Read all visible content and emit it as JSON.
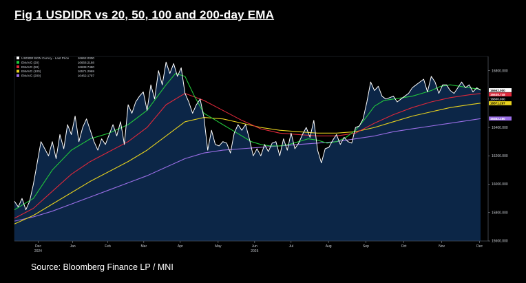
{
  "figure": {
    "title": "Fig  1  USDIDR vs 20, 50, 100 and 200-day EMA",
    "source": "Source: Bloomberg Finance LP / MNI"
  },
  "chart_data": {
    "type": "line",
    "title": "USDIDR vs 20, 50, 100 and 200-day EMA",
    "xlabel": "",
    "ylabel": "",
    "ylim": [
      15600,
      16900
    ],
    "y_ticks": [
      15600,
      15800,
      16000,
      16200,
      16400,
      16600,
      16800
    ],
    "y_tick_labels": [
      "15600.000",
      "15800.000",
      "16000.000",
      "16200.000",
      "16400.000",
      "16600.000",
      "16800.000"
    ],
    "x_ticks": [
      {
        "t": 0.05,
        "label": "Dec",
        "sub": "2024"
      },
      {
        "t": 0.123,
        "label": "Jan",
        "sub": ""
      },
      {
        "t": 0.197,
        "label": "Feb",
        "sub": ""
      },
      {
        "t": 0.273,
        "label": "Mar",
        "sub": ""
      },
      {
        "t": 0.35,
        "label": "Apr",
        "sub": ""
      },
      {
        "t": 0.43,
        "label": "May",
        "sub": ""
      },
      {
        "t": 0.507,
        "label": "Jun",
        "sub": "2025"
      },
      {
        "t": 0.584,
        "label": "Jul",
        "sub": ""
      },
      {
        "t": 0.663,
        "label": "Aug",
        "sub": ""
      },
      {
        "t": 0.742,
        "label": "Sep",
        "sub": ""
      },
      {
        "t": 0.822,
        "label": "Oct",
        "sub": ""
      },
      {
        "t": 0.902,
        "label": "Nov",
        "sub": ""
      },
      {
        "t": 0.982,
        "label": "Dec",
        "sub": ""
      }
    ],
    "legend": [
      {
        "label": "USDIDR BGN Curncy - Last Price",
        "value": "16662.0000",
        "color": "#ffffff"
      },
      {
        "label": "EMAVG (20)",
        "value": "16668.2188",
        "color": "#22c83c"
      },
      {
        "label": "EMAVG (50)",
        "value": "16638.7480",
        "color": "#e0283a"
      },
      {
        "label": "EMAVG (100)",
        "value": "16571.2969",
        "color": "#e8d21e"
      },
      {
        "label": "EMAVG (200)",
        "value": "16462.1797",
        "color": "#9a6ee6"
      }
    ],
    "last_value_tags": [
      {
        "label": "16662.000",
        "value": 16662.0,
        "bg": "#ffffff",
        "fg": "#000000"
      },
      {
        "label": "16638.748",
        "value": 16638.748,
        "bg": "#e0283a",
        "fg": "#ffffff"
      },
      {
        "label": "16600.000",
        "value": 16600.0,
        "bg": "#000000",
        "fg": "#c8ccd2"
      },
      {
        "label": "16571.297",
        "value": 16571.297,
        "bg": "#e8d21e",
        "fg": "#000000"
      },
      {
        "label": "16462.180",
        "value": 16462.18,
        "bg": "#9a6ee6",
        "fg": "#ffffff"
      }
    ],
    "series": [
      {
        "name": "USDIDR BGN Curncy - Last Price",
        "color": "#ffffff",
        "fill": "#0c2647",
        "x": [
          0,
          0.008,
          0.016,
          0.024,
          0.032,
          0.04,
          0.048,
          0.056,
          0.064,
          0.072,
          0.08,
          0.088,
          0.096,
          0.104,
          0.112,
          0.12,
          0.128,
          0.136,
          0.144,
          0.152,
          0.16,
          0.168,
          0.176,
          0.184,
          0.192,
          0.2,
          0.208,
          0.216,
          0.224,
          0.232,
          0.24,
          0.248,
          0.256,
          0.264,
          0.272,
          0.28,
          0.288,
          0.296,
          0.304,
          0.312,
          0.32,
          0.328,
          0.336,
          0.344,
          0.352,
          0.36,
          0.368,
          0.376,
          0.384,
          0.392,
          0.4,
          0.408,
          0.416,
          0.424,
          0.432,
          0.44,
          0.448,
          0.456,
          0.464,
          0.472,
          0.48,
          0.488,
          0.496,
          0.504,
          0.512,
          0.52,
          0.528,
          0.536,
          0.544,
          0.552,
          0.56,
          0.568,
          0.576,
          0.584,
          0.592,
          0.6,
          0.608,
          0.616,
          0.624,
          0.632,
          0.64,
          0.648,
          0.656,
          0.664,
          0.672,
          0.68,
          0.688,
          0.696,
          0.704,
          0.712,
          0.72,
          0.728,
          0.736,
          0.744,
          0.752,
          0.76,
          0.768,
          0.776,
          0.784,
          0.792,
          0.8,
          0.808,
          0.816,
          0.824,
          0.832,
          0.84,
          0.848,
          0.856,
          0.864,
          0.872,
          0.88,
          0.888,
          0.896,
          0.904,
          0.912,
          0.92,
          0.928,
          0.936,
          0.944,
          0.952,
          0.96,
          0.968,
          0.976,
          0.984
        ],
        "values": [
          15880,
          15840,
          15900,
          15820,
          15880,
          16000,
          16150,
          16300,
          16250,
          16200,
          16300,
          16180,
          16350,
          16250,
          16420,
          16350,
          16480,
          16300,
          16400,
          16460,
          16380,
          16300,
          16240,
          16320,
          16280,
          16350,
          16420,
          16340,
          16440,
          16280,
          16560,
          16500,
          16580,
          16620,
          16650,
          16520,
          16700,
          16600,
          16800,
          16700,
          16860,
          16780,
          16850,
          16760,
          16820,
          16640,
          16580,
          16500,
          16560,
          16600,
          16470,
          16240,
          16380,
          16280,
          16270,
          16300,
          16290,
          16220,
          16360,
          16420,
          16380,
          16420,
          16320,
          16200,
          16250,
          16200,
          16280,
          16230,
          16290,
          16300,
          16200,
          16320,
          16240,
          16360,
          16250,
          16290,
          16350,
          16400,
          16330,
          16450,
          16240,
          16150,
          16250,
          16260,
          16310,
          16350,
          16280,
          16330,
          16300,
          16290,
          16400,
          16410,
          16460,
          16580,
          16720,
          16660,
          16690,
          16620,
          16600,
          16610,
          16620,
          16580,
          16600,
          16620,
          16640,
          16680,
          16700,
          16720,
          16740,
          16650,
          16760,
          16720,
          16640,
          16700,
          16700,
          16660,
          16640,
          16680,
          16720,
          16680,
          16700,
          16650,
          16680,
          16662
        ]
      },
      {
        "name": "EMAVG (20)",
        "color": "#22c83c",
        "x": [
          0,
          0.04,
          0.08,
          0.12,
          0.16,
          0.2,
          0.24,
          0.28,
          0.32,
          0.34,
          0.36,
          0.38,
          0.4,
          0.42,
          0.44,
          0.46,
          0.48,
          0.5,
          0.52,
          0.54,
          0.56,
          0.58,
          0.6,
          0.62,
          0.64,
          0.66,
          0.68,
          0.7,
          0.72,
          0.74,
          0.76,
          0.78,
          0.8,
          0.82,
          0.84,
          0.86,
          0.88,
          0.9,
          0.92,
          0.94,
          0.96,
          0.984
        ],
        "values": [
          15820,
          15900,
          16100,
          16240,
          16320,
          16360,
          16420,
          16520,
          16700,
          16780,
          16760,
          16620,
          16500,
          16460,
          16420,
          16380,
          16340,
          16300,
          16280,
          16270,
          16270,
          16280,
          16300,
          16320,
          16310,
          16290,
          16300,
          16330,
          16380,
          16460,
          16550,
          16590,
          16600,
          16610,
          16620,
          16640,
          16660,
          16690,
          16700,
          16690,
          16680,
          16668
        ]
      },
      {
        "name": "EMAVG (50)",
        "color": "#e0283a",
        "x": [
          0,
          0.04,
          0.08,
          0.12,
          0.16,
          0.2,
          0.24,
          0.28,
          0.32,
          0.36,
          0.4,
          0.44,
          0.48,
          0.52,
          0.56,
          0.6,
          0.64,
          0.68,
          0.72,
          0.76,
          0.8,
          0.84,
          0.88,
          0.92,
          0.96,
          0.984
        ],
        "values": [
          15760,
          15830,
          15950,
          16070,
          16160,
          16230,
          16300,
          16400,
          16560,
          16640,
          16590,
          16520,
          16450,
          16390,
          16360,
          16350,
          16340,
          16340,
          16360,
          16430,
          16490,
          16540,
          16580,
          16610,
          16630,
          16639
        ]
      },
      {
        "name": "EMAVG (100)",
        "color": "#e8d21e",
        "x": [
          0,
          0.04,
          0.08,
          0.12,
          0.16,
          0.2,
          0.24,
          0.28,
          0.32,
          0.36,
          0.4,
          0.44,
          0.48,
          0.52,
          0.56,
          0.6,
          0.64,
          0.68,
          0.72,
          0.76,
          0.8,
          0.84,
          0.88,
          0.92,
          0.96,
          0.984
        ],
        "values": [
          15720,
          15780,
          15860,
          15940,
          16020,
          16090,
          16160,
          16240,
          16340,
          16440,
          16470,
          16460,
          16430,
          16400,
          16380,
          16370,
          16360,
          16360,
          16370,
          16400,
          16440,
          16480,
          16510,
          16540,
          16560,
          16571
        ]
      },
      {
        "name": "EMAVG (200)",
        "color": "#9a6ee6",
        "x": [
          0,
          0.04,
          0.08,
          0.12,
          0.16,
          0.2,
          0.24,
          0.28,
          0.32,
          0.36,
          0.4,
          0.44,
          0.48,
          0.52,
          0.56,
          0.6,
          0.64,
          0.68,
          0.72,
          0.76,
          0.8,
          0.84,
          0.88,
          0.92,
          0.96,
          0.984
        ],
        "values": [
          15740,
          15770,
          15810,
          15860,
          15910,
          15960,
          16010,
          16060,
          16120,
          16180,
          16220,
          16240,
          16250,
          16260,
          16270,
          16280,
          16290,
          16300,
          16320,
          16340,
          16370,
          16390,
          16410,
          16430,
          16450,
          16462
        ]
      }
    ]
  }
}
